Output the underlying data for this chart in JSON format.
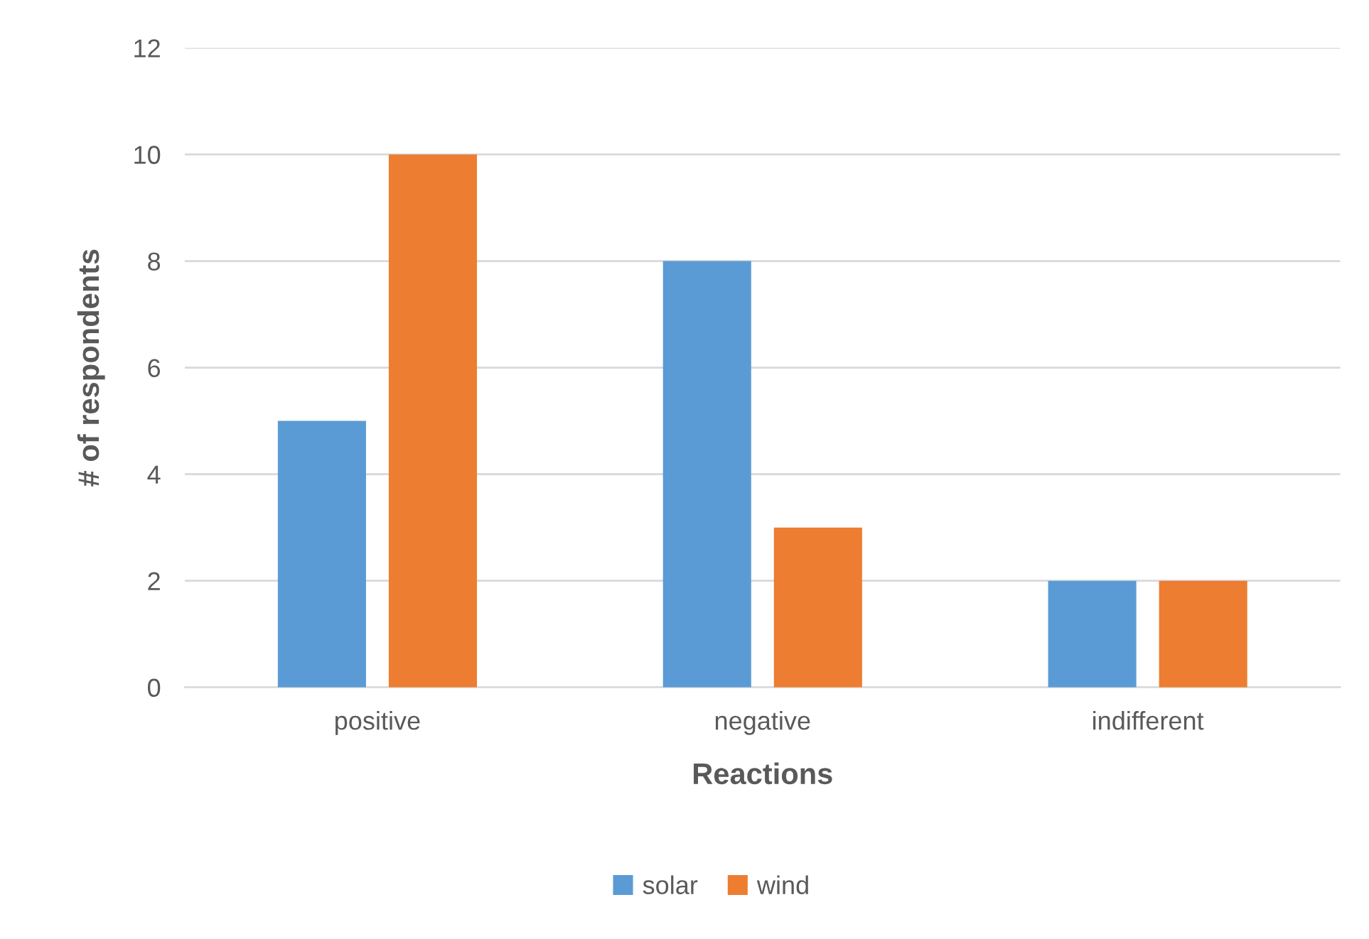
{
  "chart_data": {
    "type": "bar",
    "xlabel": "Reactions",
    "ylabel": "# of respondents",
    "categories": [
      "positive",
      "negative",
      "indifferent"
    ],
    "series": [
      {
        "name": "solar",
        "color": "#5b9bd5",
        "values": [
          5,
          8,
          2
        ]
      },
      {
        "name": "wind",
        "color": "#ed7d31",
        "values": [
          10,
          3,
          2
        ]
      }
    ],
    "ylim": [
      0,
      12
    ],
    "yticks": [
      0,
      2,
      4,
      6,
      8,
      10,
      12
    ],
    "grid": "y",
    "legend": "bottom"
  }
}
